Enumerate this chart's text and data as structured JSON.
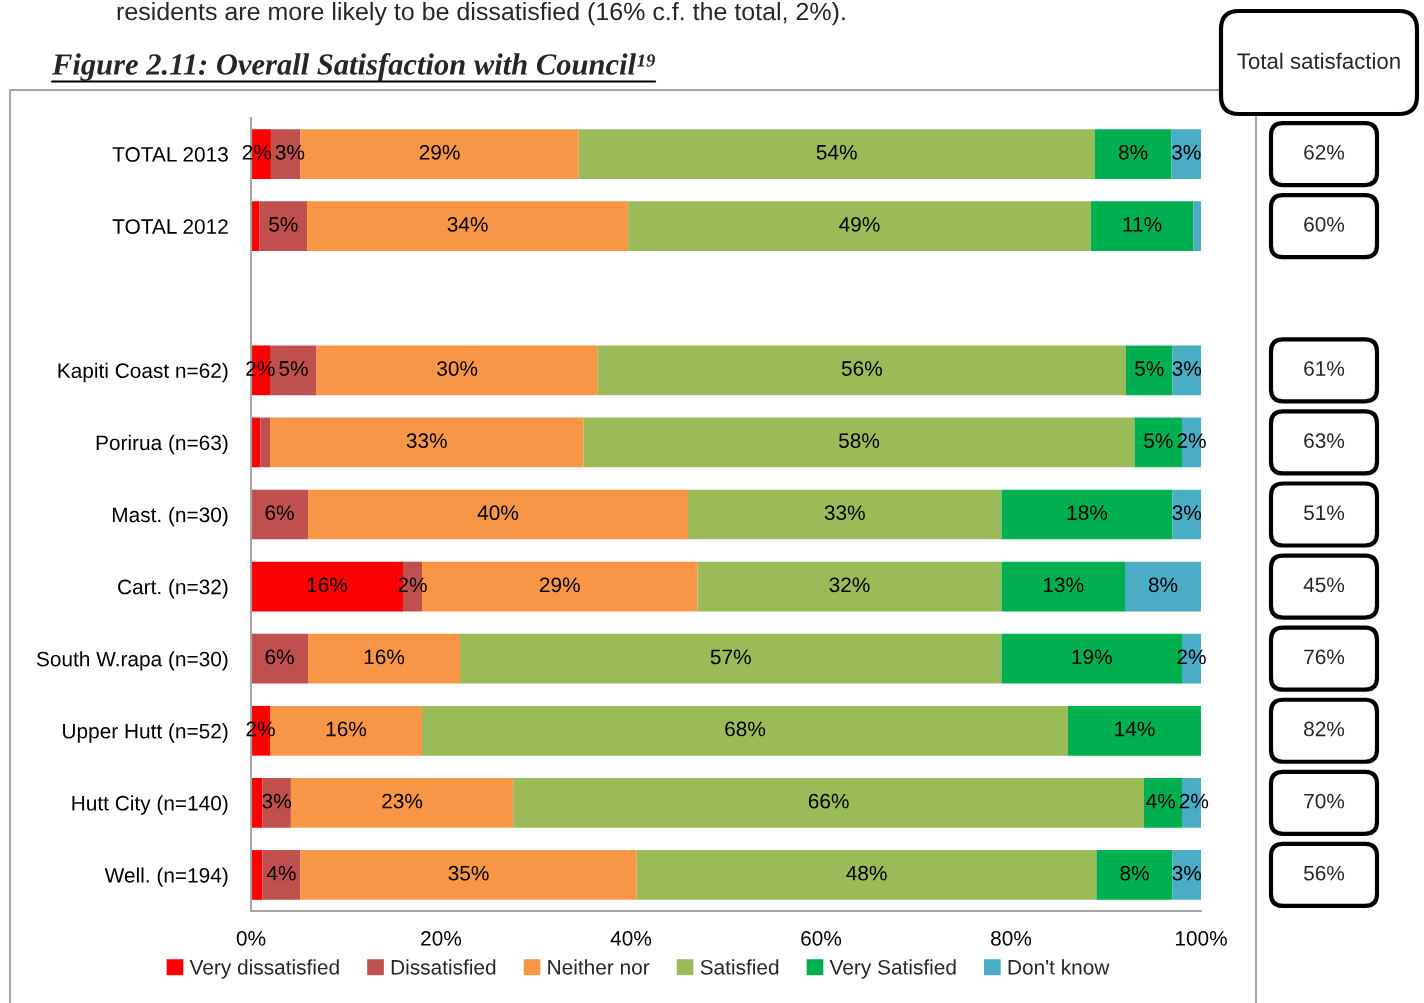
{
  "chart_data": {
    "type": "bar",
    "orientation": "horizontal",
    "stacked": true,
    "title": "Figure 2.11: Overall Satisfaction with Council¹⁹",
    "annotations": [
      "residents are more likely to be dissatisfied (16% c.f. the total, 2%).",
      "Total satisfaction",
      "62%",
      "60%",
      "61%",
      "63%",
      "51%",
      "45%",
      "76%",
      "82%",
      "70%",
      "56%"
    ],
    "categories": [
      "TOTAL 2013",
      "TOTAL 2012",
      null,
      "Kapiti Coast n=62)",
      "Porirua (n=63)",
      "Mast. (n=30)",
      "Cart. (n=32)",
      "South W.rapa (n=30)",
      "Upper Hutt (n=52)",
      "Hutt City (n=140)",
      "Well. (n=194)"
    ],
    "series": [
      {
        "name": "Very dissatisfied",
        "color": "#ff0000",
        "values": [
          2.1,
          0.9,
          null,
          2,
          1,
          null,
          16,
          null,
          2,
          1.2,
          1.2
        ],
        "value_labels": [
          "2%",
          null,
          null,
          "2%",
          null,
          null,
          "16%",
          null,
          "2%",
          null,
          null
        ]
      },
      {
        "name": "Dissatisfied",
        "color": "#c0504d",
        "values": [
          3.1,
          5,
          null,
          4.9,
          1,
          6,
          2,
          6,
          null,
          3,
          4
        ],
        "value_labels": [
          "3%",
          "5%",
          null,
          "5%",
          null,
          "6%",
          "2%",
          "6%",
          null,
          "3%",
          "4%"
        ]
      },
      {
        "name": "Neither nor",
        "color": "#f79646",
        "values": [
          29.3,
          33.8,
          null,
          29.6,
          33,
          40,
          29,
          16,
          16,
          23.4,
          35.4
        ],
        "value_labels": [
          "29%",
          "34%",
          null,
          "30%",
          "33%",
          "40%",
          "29%",
          "16%",
          "16%",
          "23%",
          "35%"
        ]
      },
      {
        "name": "Satisfied",
        "color": "#9bbb59",
        "values": [
          54.3,
          48.7,
          null,
          55.6,
          58,
          33,
          32,
          57,
          68,
          66.4,
          48.4
        ],
        "value_labels": [
          "54%",
          "49%",
          null,
          "56%",
          "58%",
          "33%",
          "32%",
          "57%",
          "68%",
          "66%",
          "48%"
        ]
      },
      {
        "name": "Very Satisfied",
        "color": "#00b050",
        "values": [
          8.1,
          10.8,
          null,
          4.9,
          5,
          18,
          13,
          19,
          14,
          4,
          8
        ],
        "value_labels": [
          "8%",
          "11%",
          null,
          "5%",
          "5%",
          "18%",
          "13%",
          "19%",
          "14%",
          "4%",
          "8%"
        ]
      },
      {
        "name": "Don't know",
        "color": "#4bacc6",
        "values": [
          3.1,
          0.8,
          null,
          3,
          2,
          3,
          8,
          2,
          null,
          2,
          3
        ],
        "value_labels": [
          "3%",
          null,
          null,
          "3%",
          "2%",
          "3%",
          "8%",
          "2%",
          null,
          "2%",
          "3%"
        ]
      }
    ],
    "xlim": [
      0,
      100
    ],
    "xticks": [
      {
        "value": 0,
        "label": "0%"
      },
      {
        "value": 20,
        "label": "20%"
      },
      {
        "value": 40,
        "label": "40%"
      },
      {
        "value": 60,
        "label": "60%"
      },
      {
        "value": 80,
        "label": "80%"
      },
      {
        "value": 100,
        "label": "100%"
      }
    ],
    "legend": "bottom"
  }
}
